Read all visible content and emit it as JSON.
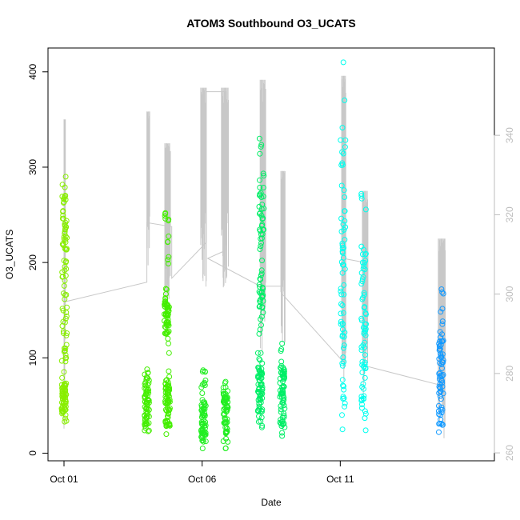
{
  "chart_data": {
    "type": "scatter",
    "title": "ATOM3 Southbound O3_UCATS",
    "xlabel": "Date",
    "ylabel": "O3_UCATS",
    "xlim": [
      0.0,
      15.0
    ],
    "ylim": [
      -8,
      425
    ],
    "y2lim": [
      258,
      362
    ],
    "x_ticks": [
      {
        "value": 0,
        "label": "Oct 01"
      },
      {
        "value": 5,
        "label": "Oct 06"
      },
      {
        "value": 10,
        "label": "Oct 11"
      }
    ],
    "y_ticks": [
      0,
      100,
      200,
      300,
      400
    ],
    "y2_ticks": [
      260,
      280,
      300,
      320,
      340
    ],
    "grid": false,
    "legend": "none",
    "colors": {
      "axis": "#000000",
      "secondary_axis": "#bdbdbd",
      "trace": "#c8c8c8",
      "box": "#000000"
    },
    "series": [
      {
        "color": "#88ee00",
        "points": [
          {
            "x": 0.0,
            "ymin": 33,
            "ymax": 110,
            "q1": 40,
            "q3": 75
          },
          {
            "x": 0.02,
            "ymin": 110,
            "ymax": 290,
            "q1": 120,
            "q3": 270
          }
        ]
      },
      {
        "color": "#44ee00",
        "points": [
          {
            "x": 3.0,
            "ymin": 23,
            "ymax": 88,
            "q1": 30,
            "q3": 75
          },
          {
            "x": 3.75,
            "ymin": 20,
            "ymax": 86,
            "q1": 28,
            "q3": 75
          },
          {
            "x": 3.72,
            "ymin": 105,
            "ymax": 252,
            "q1": 125,
            "q3": 160
          }
        ]
      },
      {
        "color": "#22ee22",
        "points": [
          {
            "x": 5.05,
            "ymin": 5,
            "ymax": 87,
            "q1": 12,
            "q3": 55
          },
          {
            "x": 5.85,
            "ymin": 5,
            "ymax": 75,
            "q1": 18,
            "q3": 60
          }
        ]
      },
      {
        "color": "#00ee66",
        "points": [
          {
            "x": 7.1,
            "ymin": 27,
            "ymax": 105,
            "q1": 35,
            "q3": 95
          },
          {
            "x": 7.15,
            "ymin": 105,
            "ymax": 330,
            "q1": 140,
            "q3": 300
          },
          {
            "x": 7.9,
            "ymin": 18,
            "ymax": 115,
            "q1": 28,
            "q3": 90
          }
        ]
      },
      {
        "color": "#00ffee",
        "points": [
          {
            "x": 10.1,
            "ymin": 25,
            "ymax": 410,
            "q1": 40,
            "q3": 350
          },
          {
            "x": 10.85,
            "ymin": 24,
            "ymax": 272,
            "q1": 40,
            "q3": 220
          }
        ]
      },
      {
        "color": "#1199ff",
        "points": [
          {
            "x": 13.65,
            "ymin": 22,
            "ymax": 172,
            "q1": 28,
            "q3": 130
          }
        ]
      }
    ],
    "secondary_trace": {
      "name": "",
      "axis": "right",
      "segments": [
        {
          "x": [
            0.0,
            0.05
          ],
          "y": [
            262,
            344
          ]
        },
        {
          "x": [
            3.0,
            3.1
          ],
          "y": [
            303,
            346
          ]
        },
        {
          "x": [
            3.65,
            3.85
          ],
          "y": [
            290,
            338
          ]
        },
        {
          "x": [
            4.95,
            5.15
          ],
          "y": [
            299,
            352
          ]
        },
        {
          "x": [
            5.7,
            5.95
          ],
          "y": [
            299,
            352
          ]
        },
        {
          "x": [
            7.1,
            7.3
          ],
          "y": [
            275,
            354
          ]
        },
        {
          "x": [
            7.85,
            8.0
          ],
          "y": [
            284,
            331
          ]
        },
        {
          "x": [
            10.05,
            10.2
          ],
          "y": [
            272,
            355
          ]
        },
        {
          "x": [
            10.8,
            11.0
          ],
          "y": [
            270,
            326
          ]
        },
        {
          "x": [
            13.55,
            13.8
          ],
          "y": [
            261,
            314
          ]
        }
      ],
      "path": [
        {
          "x": 0.0,
          "y": 298
        },
        {
          "x": 3.0,
          "y": 303
        },
        {
          "x": 3.0,
          "y": 318
        },
        {
          "x": 3.9,
          "y": 317
        },
        {
          "x": 3.9,
          "y": 304
        },
        {
          "x": 5.15,
          "y": 313
        },
        {
          "x": 5.15,
          "y": 351
        },
        {
          "x": 5.85,
          "y": 351
        },
        {
          "x": 5.85,
          "y": 311
        },
        {
          "x": 5.2,
          "y": 309
        },
        {
          "x": 7.1,
          "y": 302
        },
        {
          "x": 7.9,
          "y": 302
        },
        {
          "x": 7.9,
          "y": 300
        },
        {
          "x": 10.1,
          "y": 283
        },
        {
          "x": 10.1,
          "y": 309
        },
        {
          "x": 10.85,
          "y": 308
        },
        {
          "x": 10.85,
          "y": 282
        },
        {
          "x": 13.65,
          "y": 277
        }
      ]
    }
  }
}
